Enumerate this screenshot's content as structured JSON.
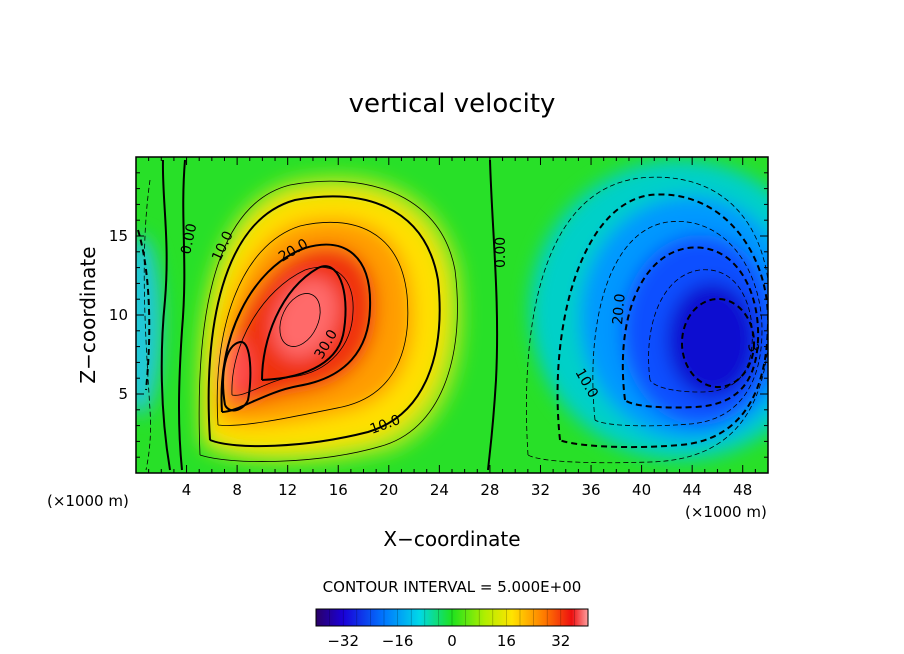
{
  "chart_data": {
    "type": "heatmap",
    "title": "vertical velocity",
    "xlabel": "X−coordinate",
    "ylabel": "Z−coordinate",
    "x_unit_left": "(×1000 m)",
    "x_unit_right": "(×1000 m)",
    "xlim": [
      0,
      50
    ],
    "ylim": [
      0,
      20
    ],
    "x_ticks": [
      "4",
      "8",
      "12",
      "16",
      "20",
      "24",
      "28",
      "32",
      "36",
      "40",
      "44",
      "48"
    ],
    "y_ticks": [
      "5",
      "10",
      "15"
    ],
    "contour_labels": [
      "0.00",
      "10.0",
      "20.0",
      "30.0",
      "0.00",
      "20.0",
      "10.0",
      "10.0",
      "3"
    ],
    "contour_interval_text": "CONTOUR INTERVAL = 5.000E+00",
    "contour_interval": 5.0,
    "colorbar": {
      "range": [
        -40,
        40
      ],
      "ticks": [
        "−32",
        "−16",
        "0",
        "16",
        "32"
      ],
      "colormap": "rainbow"
    },
    "updraft": {
      "center_x": 13.5,
      "center_z": 9.5,
      "max": 35
    },
    "updraft_secondary": {
      "center_x": 7.5,
      "center_z": 6.5,
      "max": 33
    },
    "downdraft": {
      "center_x": 45.5,
      "center_z": 8.5,
      "min": -37
    },
    "edge_downdraft": {
      "center_x": 0,
      "center_z": 8.5,
      "min": -10
    }
  }
}
